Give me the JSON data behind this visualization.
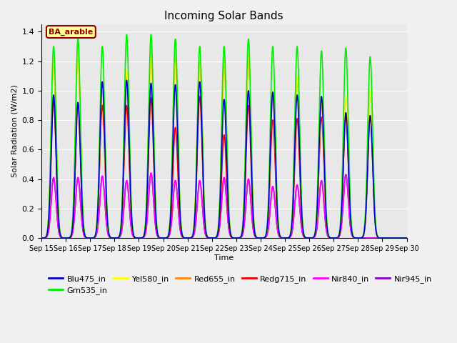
{
  "title": "Incoming Solar Bands",
  "xlabel": "Time",
  "ylabel": "Solar Radiation (W/m2)",
  "ylim": [
    0.0,
    1.45
  ],
  "yticks": [
    0.0,
    0.2,
    0.4,
    0.6,
    0.8,
    1.0,
    1.2,
    1.4
  ],
  "x_tick_labels": [
    "Sep 15",
    "Sep 16",
    "Sep 17",
    "Sep 18",
    "Sep 19",
    "Sep 20",
    "Sep 21",
    "Sep 22",
    "Sep 23",
    "Sep 24",
    "Sep 25",
    "Sep 26",
    "Sep 27",
    "Sep 28",
    "Sep 29",
    "Sep 30"
  ],
  "annotation_text": "BA_arable",
  "annotation_bg": "#ffff99",
  "annotation_border": "#8b0000",
  "background_color": "#e8e8e8",
  "grid_color": "#ffffff",
  "bands": [
    {
      "name": "Blu475_in",
      "color": "#0000cc",
      "lw": 1.2,
      "zorder": 7
    },
    {
      "name": "Grn535_in",
      "color": "#00ee00",
      "lw": 1.2,
      "zorder": 6
    },
    {
      "name": "Yel580_in",
      "color": "#ffff00",
      "lw": 1.2,
      "zorder": 5
    },
    {
      "name": "Red655_in",
      "color": "#ff8800",
      "lw": 1.2,
      "zorder": 4
    },
    {
      "name": "Redg715_in",
      "color": "#ee0000",
      "lw": 1.2,
      "zorder": 3
    },
    {
      "name": "Nir840_in",
      "color": "#ff00ff",
      "lw": 1.2,
      "zorder": 2
    },
    {
      "name": "Nir945_in",
      "color": "#8800cc",
      "lw": 1.2,
      "zorder": 1
    }
  ],
  "peak_heights": {
    "Grn535_in": [
      1.3,
      1.35,
      1.3,
      1.38,
      1.38,
      1.35,
      1.3,
      1.3,
      1.35,
      1.3,
      1.3,
      1.27,
      1.29,
      1.23,
      0.0
    ],
    "Yel580_in": [
      1.22,
      1.27,
      1.04,
      1.14,
      1.3,
      1.28,
      1.25,
      1.22,
      1.25,
      1.0,
      1.09,
      0.95,
      0.96,
      1.0,
      0.0
    ],
    "Red655_in": [
      1.2,
      1.25,
      1.02,
      1.12,
      1.28,
      1.25,
      1.22,
      1.19,
      1.22,
      0.98,
      1.07,
      0.93,
      0.95,
      0.98,
      0.0
    ],
    "Redg715_in": [
      0.93,
      0.91,
      0.9,
      0.9,
      0.95,
      0.75,
      0.96,
      0.7,
      0.9,
      0.8,
      0.81,
      0.82,
      0.83,
      0.83,
      0.0
    ],
    "Blu475_in": [
      0.97,
      0.92,
      1.06,
      1.07,
      1.05,
      1.04,
      1.06,
      0.94,
      1.0,
      0.99,
      0.97,
      0.96,
      0.85,
      0.83,
      0.0
    ],
    "Nir840_in": [
      0.41,
      0.41,
      0.42,
      0.39,
      0.44,
      0.39,
      0.39,
      0.41,
      0.4,
      0.35,
      0.36,
      0.39,
      0.43,
      0.0,
      0.0
    ],
    "Nir945_in": [
      0.41,
      0.41,
      0.42,
      0.39,
      0.44,
      0.39,
      0.39,
      0.41,
      0.4,
      0.35,
      0.36,
      0.39,
      0.43,
      0.0,
      0.0
    ]
  }
}
